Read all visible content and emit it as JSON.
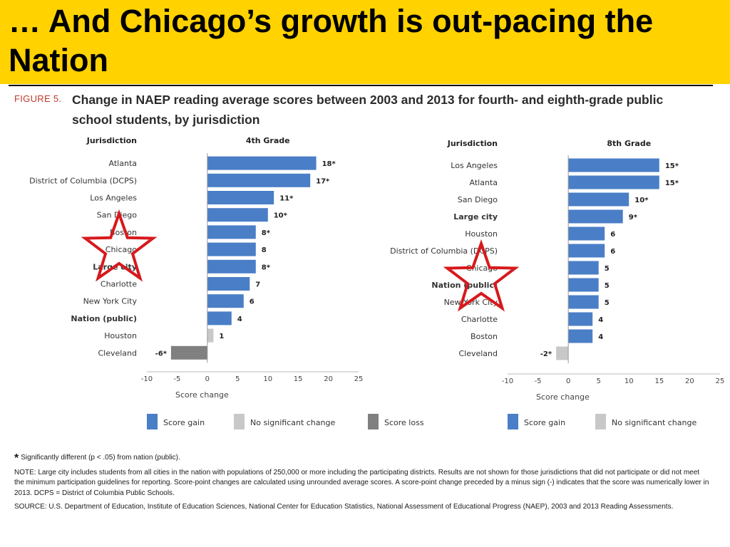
{
  "slide": {
    "title": "… And Chicago’s growth is out-pacing the Nation"
  },
  "figure": {
    "label": "FIGURE 5.",
    "caption": "Change in NAEP reading average scores between 2003 and 2013 for fourth- and eighth-grade public school students, by jurisdiction"
  },
  "colors": {
    "title_bar": "#FFD200",
    "gain": "#4A7EC7",
    "no_change": "#C8C8C8",
    "loss": "#808080",
    "star": "#D7191C"
  },
  "chart_data": [
    {
      "type": "bar",
      "orientation": "horizontal",
      "title": "4th Grade",
      "category_header": "Jurisdiction",
      "xlabel": "Score change",
      "xlim": [
        -10,
        25
      ],
      "xticks": [
        "-10",
        "-5",
        "0",
        "5",
        "10",
        "15",
        "20",
        "25"
      ],
      "grid": false,
      "legend": "bottom",
      "legend_entries": [
        "Score gain",
        "No significant change",
        "Score loss"
      ],
      "bars": [
        {
          "category": "Atlanta",
          "value": 18,
          "label": "18*",
          "kind": "gain",
          "bold": false
        },
        {
          "category": "District of Columbia (DCPS)",
          "value": 17,
          "label": "17*",
          "kind": "gain",
          "bold": false
        },
        {
          "category": "Los Angeles",
          "value": 11,
          "label": "11*",
          "kind": "gain",
          "bold": false
        },
        {
          "category": "San Diego",
          "value": 10,
          "label": "10*",
          "kind": "gain",
          "bold": false
        },
        {
          "category": "Boston",
          "value": 8,
          "label": "8*",
          "kind": "gain",
          "bold": false
        },
        {
          "category": "Chicago",
          "value": 8,
          "label": "8",
          "kind": "gain",
          "bold": false
        },
        {
          "category": "Large city",
          "value": 8,
          "label": "8*",
          "kind": "gain",
          "bold": true
        },
        {
          "category": "Charlotte",
          "value": 7,
          "label": "7",
          "kind": "gain",
          "bold": false
        },
        {
          "category": "New York City",
          "value": 6,
          "label": "6",
          "kind": "gain",
          "bold": false
        },
        {
          "category": "Nation (public)",
          "value": 4,
          "label": "4",
          "kind": "gain",
          "bold": true
        },
        {
          "category": "Houston",
          "value": 1,
          "label": "1",
          "kind": "no_change",
          "bold": false
        },
        {
          "category": "Cleveland",
          "value": -6,
          "label": "-6*",
          "kind": "loss",
          "bold": false
        }
      ],
      "highlight": "Chicago"
    },
    {
      "type": "bar",
      "orientation": "horizontal",
      "title": "8th Grade",
      "category_header": "Jurisdiction",
      "xlabel": "Score change",
      "xlim": [
        -10,
        25
      ],
      "xticks": [
        "-10",
        "-5",
        "0",
        "5",
        "10",
        "15",
        "20",
        "25"
      ],
      "grid": false,
      "legend": "bottom",
      "legend_entries": [
        "Score gain",
        "No significant change"
      ],
      "bars": [
        {
          "category": "Los Angeles",
          "value": 15,
          "label": "15*",
          "kind": "gain",
          "bold": false
        },
        {
          "category": "Atlanta",
          "value": 15,
          "label": "15*",
          "kind": "gain",
          "bold": false
        },
        {
          "category": "San Diego",
          "value": 10,
          "label": "10*",
          "kind": "gain",
          "bold": false
        },
        {
          "category": "Large city",
          "value": 9,
          "label": "9*",
          "kind": "gain",
          "bold": true
        },
        {
          "category": "Houston",
          "value": 6,
          "label": "6",
          "kind": "gain",
          "bold": false
        },
        {
          "category": "District of Columbia (DCPS)",
          "value": 6,
          "label": "6",
          "kind": "gain",
          "bold": false
        },
        {
          "category": "Chicago",
          "value": 5,
          "label": "5",
          "kind": "gain",
          "bold": false
        },
        {
          "category": "Nation (public)",
          "value": 5,
          "label": "5",
          "kind": "gain",
          "bold": true
        },
        {
          "category": "New York City",
          "value": 5,
          "label": "5",
          "kind": "gain",
          "bold": false
        },
        {
          "category": "Charlotte",
          "value": 4,
          "label": "4",
          "kind": "gain",
          "bold": false
        },
        {
          "category": "Boston",
          "value": 4,
          "label": "4",
          "kind": "gain",
          "bold": false
        },
        {
          "category": "Cleveland",
          "value": -2,
          "label": "-2*",
          "kind": "no_change",
          "bold": false
        }
      ],
      "highlight": "Chicago"
    }
  ],
  "notes": {
    "significance": "Significantly different (p < .05) from nation (public).",
    "note": "NOTE: Large city includes students from all cities in the nation with populations of 250,000 or more including the participating districts. Results are not shown for those jurisdictions that did not participate or did not meet the minimum participation guidelines for reporting. Score-point changes are calculated using unrounded average scores. A score-point change preceded by a minus sign (-) indicates that the score was numerically lower in 2013. DCPS = District of Columbia Public Schools.",
    "source": "SOURCE: U.S. Department of Education, Institute of Education Sciences, National Center for Education Statistics, National Assessment of Educational Progress (NAEP), 2003 and 2013 Reading Assessments."
  }
}
